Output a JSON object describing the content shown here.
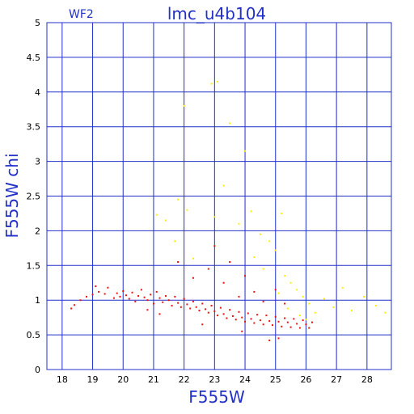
{
  "chart_data": {
    "type": "scatter",
    "title": "lmc_u4b104",
    "panel_label": "WF2",
    "xlabel": "F555W",
    "ylabel": "F555W chi",
    "xlim": [
      17.5,
      28.8
    ],
    "ylim": [
      0,
      5
    ],
    "xticks": [
      18,
      19,
      20,
      21,
      22,
      23,
      24,
      25,
      26,
      27,
      28
    ],
    "yticks": [
      0,
      0.5,
      1,
      1.5,
      2,
      2.5,
      3,
      3.5,
      4,
      4.5,
      5
    ],
    "grid": true,
    "colors": {
      "axes": "#2230c8",
      "main_series": "#ee1111",
      "outlier_series": "#ffee00"
    },
    "series": [
      {
        "color": "#ee1111",
        "points": [
          [
            18.3,
            0.88
          ],
          [
            18.4,
            0.93
          ],
          [
            18.6,
            1.0
          ],
          [
            18.8,
            1.05
          ],
          [
            19.0,
            1.08
          ],
          [
            19.1,
            1.2
          ],
          [
            19.2,
            1.12
          ],
          [
            19.4,
            1.09
          ],
          [
            19.5,
            1.18
          ],
          [
            19.7,
            1.03
          ],
          [
            19.8,
            1.1
          ],
          [
            19.9,
            1.05
          ],
          [
            20.0,
            1.13
          ],
          [
            20.1,
            1.07
          ],
          [
            20.2,
            1.02
          ],
          [
            20.3,
            1.11
          ],
          [
            20.4,
            0.98
          ],
          [
            20.5,
            1.06
          ],
          [
            20.6,
            1.15
          ],
          [
            20.7,
            1.04
          ],
          [
            20.8,
            1.0
          ],
          [
            20.9,
            1.08
          ],
          [
            21.0,
            0.95
          ],
          [
            21.1,
            1.12
          ],
          [
            21.2,
            1.03
          ],
          [
            21.3,
            0.97
          ],
          [
            21.4,
            1.06
          ],
          [
            21.5,
            1.0
          ],
          [
            21.6,
            0.92
          ],
          [
            21.7,
            1.05
          ],
          [
            21.8,
            0.96
          ],
          [
            21.9,
            0.9
          ],
          [
            22.0,
            1.02
          ],
          [
            22.1,
            0.94
          ],
          [
            22.2,
            0.88
          ],
          [
            22.3,
            0.98
          ],
          [
            22.4,
            0.9
          ],
          [
            22.5,
            0.85
          ],
          [
            22.6,
            0.95
          ],
          [
            22.7,
            0.87
          ],
          [
            22.8,
            0.82
          ],
          [
            22.9,
            0.92
          ],
          [
            23.0,
            0.84
          ],
          [
            23.1,
            0.78
          ],
          [
            23.2,
            0.89
          ],
          [
            23.3,
            0.8
          ],
          [
            23.4,
            0.74
          ],
          [
            23.5,
            0.86
          ],
          [
            23.6,
            0.77
          ],
          [
            23.7,
            0.72
          ],
          [
            23.8,
            0.83
          ],
          [
            23.9,
            0.75
          ],
          [
            24.0,
            0.69
          ],
          [
            24.1,
            0.81
          ],
          [
            24.2,
            0.73
          ],
          [
            24.3,
            0.67
          ],
          [
            24.4,
            0.79
          ],
          [
            24.5,
            0.71
          ],
          [
            24.6,
            0.65
          ],
          [
            24.7,
            0.78
          ],
          [
            24.8,
            0.7
          ],
          [
            24.9,
            0.64
          ],
          [
            25.0,
            0.76
          ],
          [
            25.1,
            0.69
          ],
          [
            25.2,
            0.62
          ],
          [
            25.3,
            0.74
          ],
          [
            25.4,
            0.68
          ],
          [
            25.5,
            0.61
          ],
          [
            25.6,
            0.73
          ],
          [
            25.7,
            0.66
          ],
          [
            25.8,
            0.6
          ],
          [
            25.9,
            0.71
          ],
          [
            26.0,
            0.65
          ],
          [
            26.1,
            0.6
          ],
          [
            26.2,
            0.68
          ],
          [
            21.8,
            1.55
          ],
          [
            22.3,
            1.32
          ],
          [
            22.8,
            1.45
          ],
          [
            23.0,
            1.78
          ],
          [
            23.3,
            1.25
          ],
          [
            23.5,
            1.55
          ],
          [
            23.8,
            1.05
          ],
          [
            24.0,
            1.35
          ],
          [
            24.3,
            1.12
          ],
          [
            24.6,
            0.98
          ],
          [
            25.0,
            1.15
          ],
          [
            25.3,
            0.95
          ],
          [
            24.8,
            0.42
          ],
          [
            25.1,
            0.45
          ],
          [
            23.9,
            0.55
          ],
          [
            22.6,
            0.65
          ],
          [
            21.2,
            0.8
          ],
          [
            20.8,
            0.86
          ]
        ]
      },
      {
        "color": "#ffee00",
        "points": [
          [
            21.1,
            2.23
          ],
          [
            21.4,
            2.15
          ],
          [
            21.7,
            1.85
          ],
          [
            21.8,
            2.45
          ],
          [
            22.0,
            3.8
          ],
          [
            22.1,
            2.3
          ],
          [
            22.3,
            1.6
          ],
          [
            22.9,
            4.12
          ],
          [
            23.0,
            2.2
          ],
          [
            23.1,
            4.15
          ],
          [
            23.3,
            2.65
          ],
          [
            23.5,
            3.55
          ],
          [
            23.8,
            2.1
          ],
          [
            24.0,
            3.15
          ],
          [
            24.2,
            2.28
          ],
          [
            24.5,
            1.95
          ],
          [
            24.8,
            1.85
          ],
          [
            25.0,
            1.72
          ],
          [
            25.2,
            2.25
          ],
          [
            25.3,
            1.35
          ],
          [
            25.5,
            1.25
          ],
          [
            25.7,
            1.15
          ],
          [
            25.9,
            1.05
          ],
          [
            26.1,
            0.95
          ],
          [
            26.3,
            0.82
          ],
          [
            26.6,
            1.02
          ],
          [
            26.9,
            0.9
          ],
          [
            27.2,
            1.18
          ],
          [
            27.5,
            0.85
          ],
          [
            27.9,
            1.05
          ],
          [
            28.3,
            0.92
          ],
          [
            28.6,
            0.82
          ],
          [
            24.6,
            1.45
          ],
          [
            25.4,
            0.88
          ],
          [
            25.8,
            0.78
          ],
          [
            26.0,
            0.72
          ],
          [
            24.3,
            1.62
          ],
          [
            25.1,
            1.1
          ]
        ]
      }
    ]
  }
}
